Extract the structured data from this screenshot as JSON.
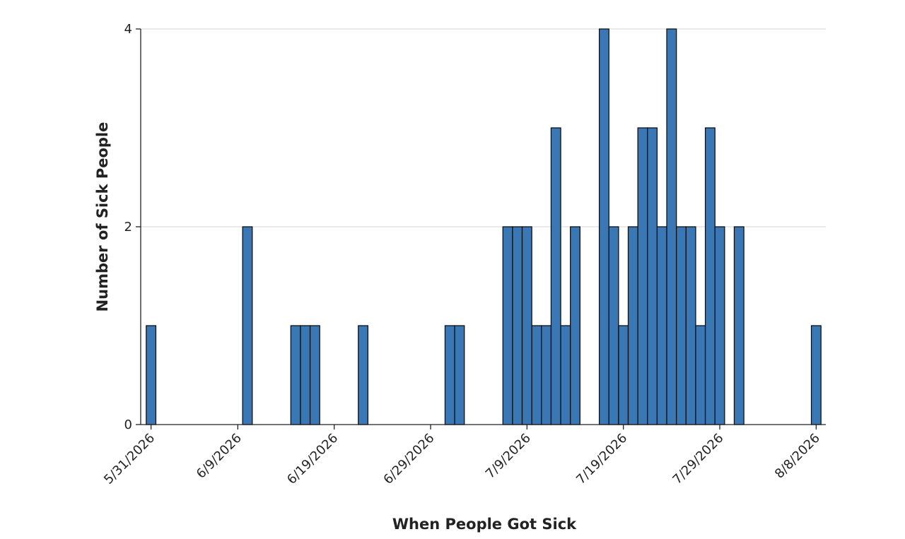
{
  "chart_data": {
    "type": "bar",
    "title": "",
    "xlabel": "When People Got Sick",
    "ylabel": "Number of Sick People",
    "ylim": [
      0,
      4
    ],
    "y_ticks": [
      0,
      2,
      4
    ],
    "xlim": [
      "2026-05-30",
      "2026-08-09"
    ],
    "x_ticks": [
      "5/31/2026",
      "6/9/2026",
      "6/19/2026",
      "6/29/2026",
      "7/9/2026",
      "7/19/2026",
      "7/29/2026",
      "8/8/2026"
    ],
    "x_tick_dates": [
      "2026-05-31",
      "2026-06-09",
      "2026-06-19",
      "2026-06-29",
      "2026-07-09",
      "2026-07-19",
      "2026-07-29",
      "2026-08-08"
    ],
    "grid": "horizontal",
    "bar_color": "#3a78b5",
    "bar_edge_color": "#111111",
    "x": [
      "2026-05-31",
      "2026-06-10",
      "2026-06-15",
      "2026-06-16",
      "2026-06-17",
      "2026-06-22",
      "2026-07-01",
      "2026-07-02",
      "2026-07-07",
      "2026-07-08",
      "2026-07-09",
      "2026-07-10",
      "2026-07-11",
      "2026-07-12",
      "2026-07-13",
      "2026-07-14",
      "2026-07-17",
      "2026-07-18",
      "2026-07-19",
      "2026-07-20",
      "2026-07-21",
      "2026-07-22",
      "2026-07-23",
      "2026-07-24",
      "2026-07-25",
      "2026-07-26",
      "2026-07-27",
      "2026-07-28",
      "2026-07-29",
      "2026-07-31",
      "2026-08-08"
    ],
    "values": [
      1,
      2,
      1,
      1,
      1,
      1,
      1,
      1,
      2,
      2,
      2,
      1,
      1,
      3,
      1,
      2,
      4,
      2,
      1,
      2,
      3,
      3,
      2,
      4,
      2,
      2,
      1,
      3,
      2,
      2,
      1
    ]
  }
}
